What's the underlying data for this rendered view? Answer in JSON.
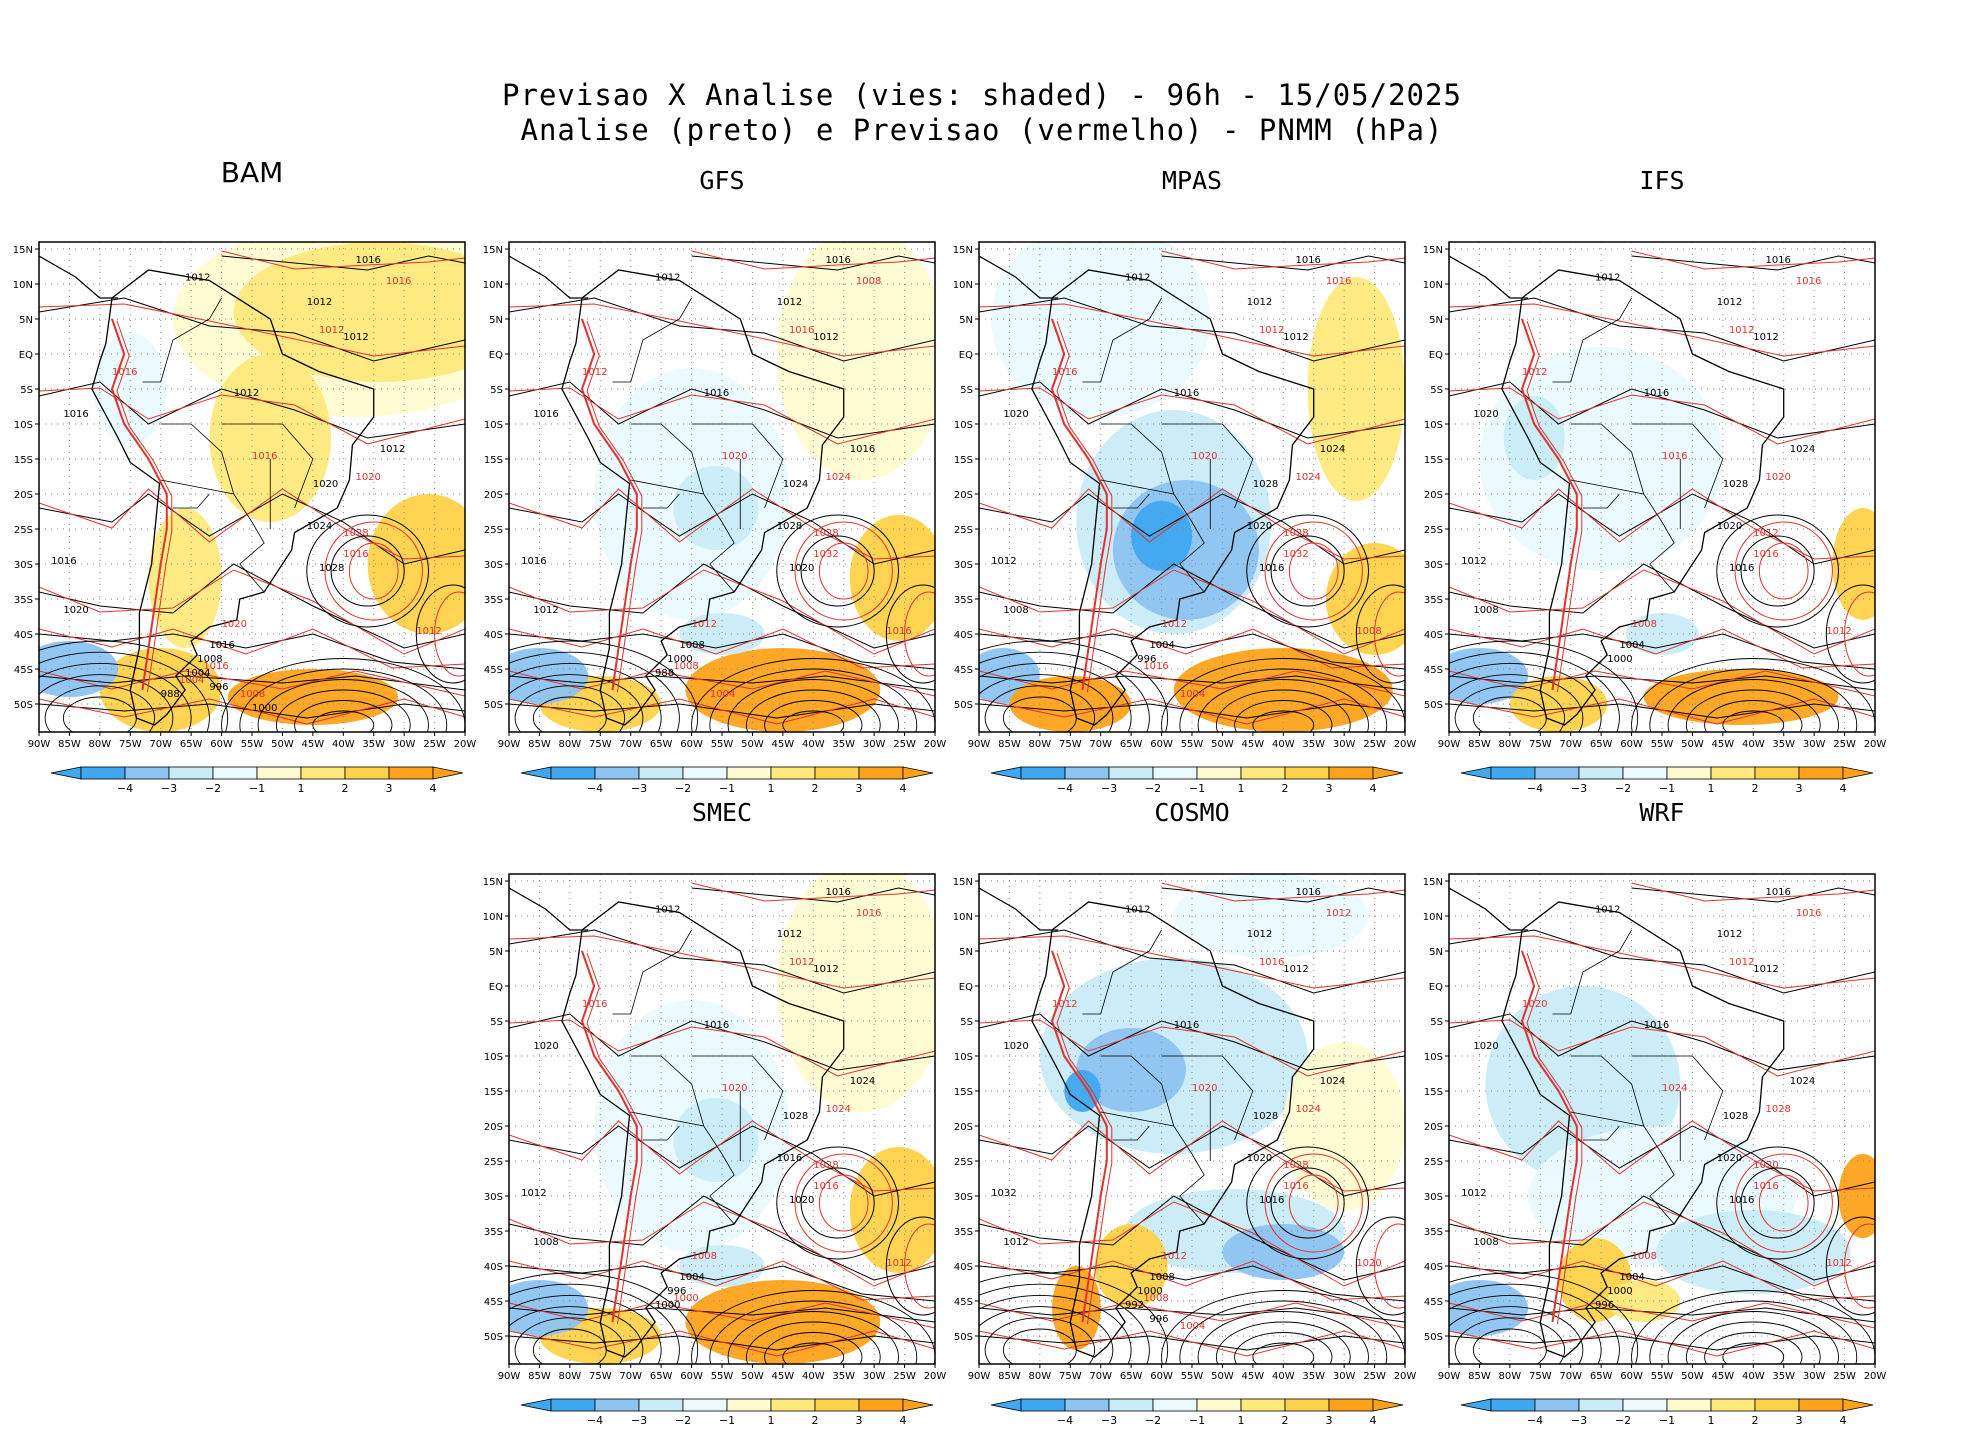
{
  "title_line1": "Previsao X Analise (vies: shaded) - 96h - 15/05/2025",
  "title_line2": "Analise (preto) e Previsao (vermelho) - PNMM (hPa)",
  "colors": {
    "neg4": "#3fa8f0",
    "neg3": "#8dc4f2",
    "neg2": "#c9ecf8",
    "neg1": "#eafaff",
    "zero": "#ffffff",
    "pos1": "#fffbd0",
    "pos2": "#ffe97c",
    "pos3": "#ffd24a",
    "pos4": "#ffa21a",
    "analysis_contour": "#000000",
    "forecast_contour": "#e0332e"
  },
  "lat_labels": [
    "15N",
    "10N",
    "5N",
    "EQ",
    "5S",
    "10S",
    "15S",
    "20S",
    "25S",
    "30S",
    "35S",
    "40S",
    "45S",
    "50S"
  ],
  "lon_labels": [
    "90W",
    "85W",
    "80W",
    "75W",
    "70W",
    "65W",
    "60W",
    "55W",
    "50W",
    "45W",
    "40W",
    "35W",
    "30W",
    "25W",
    "20W"
  ],
  "colorbar_labels": [
    "-4",
    "-3",
    "-2",
    "-1",
    "1",
    "2",
    "3",
    "4"
  ],
  "panels": [
    {
      "name": "BAM",
      "bias": "warm",
      "labels_black": [
        "1016",
        "1012",
        "1012",
        "1012",
        "1012",
        "1016",
        "1012",
        "1020",
        "1024",
        "1028",
        "1016",
        "1020",
        "1016",
        "1008",
        "1004",
        "996",
        "988",
        "1000"
      ],
      "labels_red": [
        "1016",
        "1012",
        "1016",
        "1016",
        "1020",
        "1028",
        "1016",
        "1012",
        "1020",
        "1016",
        "1008",
        "1004"
      ]
    },
    {
      "name": "GFS",
      "bias": "mixed",
      "labels_black": [
        "1016",
        "1012",
        "1012",
        "1012",
        "1016",
        "1016",
        "1016",
        "1024",
        "1028",
        "1020",
        "1016",
        "1012",
        "1008",
        "1000",
        "988"
      ],
      "labels_red": [
        "1008",
        "1016",
        "1012",
        "1020",
        "1024",
        "1028",
        "1032",
        "1016",
        "1012",
        "1008",
        "1004"
      ]
    },
    {
      "name": "MPAS",
      "bias": "cold",
      "labels_black": [
        "1016",
        "1012",
        "1012",
        "1012",
        "1016",
        "1020",
        "1024",
        "1028",
        "1020",
        "1016",
        "1012",
        "1008",
        "1004",
        "996"
      ],
      "labels_red": [
        "1016",
        "1012",
        "1016",
        "1020",
        "1024",
        "1028",
        "1032",
        "1008",
        "1012",
        "1016",
        "1004"
      ]
    },
    {
      "name": "IFS",
      "bias": "weak",
      "labels_black": [
        "1016",
        "1012",
        "1012",
        "1012",
        "1016",
        "1020",
        "1024",
        "1028",
        "1020",
        "1016",
        "1012",
        "1008",
        "1004",
        "1000"
      ],
      "labels_red": [
        "1016",
        "1012",
        "1012",
        "1016",
        "1020",
        "1012",
        "1016",
        "1012",
        "1008"
      ]
    },
    {
      "name": "SMEC",
      "bias": "mixed",
      "labels_black": [
        "1016",
        "1012",
        "1012",
        "1012",
        "1016",
        "1020",
        "1024",
        "1028",
        "1016",
        "1020",
        "1012",
        "1008",
        "1004",
        "996",
        "1000"
      ],
      "labels_red": [
        "1016",
        "1012",
        "1016",
        "1020",
        "1024",
        "1028",
        "1016",
        "1012",
        "1008",
        "1000"
      ]
    },
    {
      "name": "COSMO",
      "bias": "cold2",
      "labels_black": [
        "1016",
        "1012",
        "1012",
        "1012",
        "1016",
        "1020",
        "1024",
        "1028",
        "1020",
        "1016",
        "1032",
        "1012",
        "1008",
        "1000",
        "992",
        "996"
      ],
      "labels_red": [
        "1012",
        "1016",
        "1012",
        "1020",
        "1024",
        "1028",
        "1016",
        "1020",
        "1012",
        "1008",
        "1004"
      ]
    },
    {
      "name": "WRF",
      "bias": "cold3",
      "labels_black": [
        "1016",
        "1012",
        "1012",
        "1012",
        "1016",
        "1020",
        "1024",
        "1028",
        "1020",
        "1016",
        "1012",
        "1008",
        "1004",
        "1000",
        "996"
      ],
      "labels_red": [
        "1016",
        "1012",
        "1020",
        "1024",
        "1028",
        "1020",
        "1016",
        "1012",
        "1008"
      ]
    }
  ]
}
